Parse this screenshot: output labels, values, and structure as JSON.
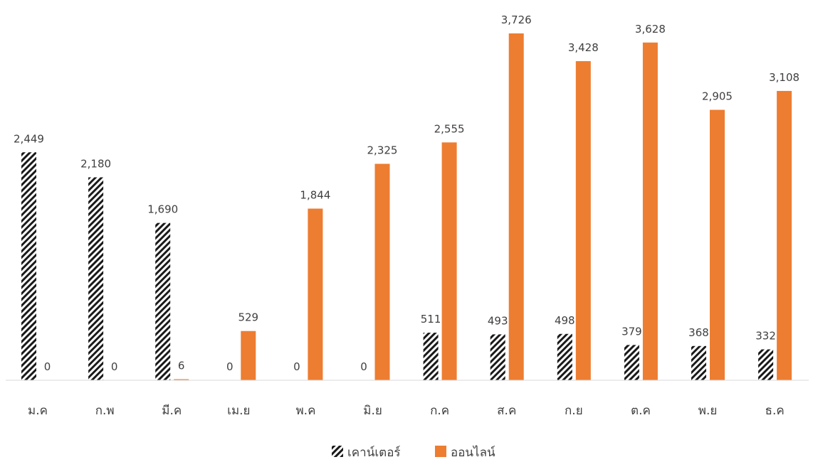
{
  "chart_data": {
    "type": "bar",
    "categories": [
      "ม.ค",
      "ก.พ",
      "มี.ค",
      "เม.ย",
      "พ.ค",
      "มิ.ย",
      "ก.ค",
      "ส.ค",
      "ก.ย",
      "ต.ค",
      "พ.ย",
      "ธ.ค"
    ],
    "series": [
      {
        "name": "เคาน์เตอร์",
        "values": [
          2449,
          2180,
          1690,
          0,
          0,
          0,
          511,
          493,
          498,
          379,
          368,
          332
        ],
        "labels": [
          "2,449",
          "2,180",
          "1,690",
          "0",
          "0",
          "0",
          "511",
          "493",
          "498",
          "379",
          "368",
          "332"
        ],
        "color": "#1a1a1a",
        "pattern": "diagonal-hatch"
      },
      {
        "name": "ออนไลน์",
        "values": [
          0,
          0,
          6,
          529,
          1844,
          2325,
          2555,
          3726,
          3428,
          3628,
          2905,
          3108
        ],
        "labels": [
          "0",
          "0",
          "6",
          "529",
          "1,844",
          "2,325",
          "2,555",
          "3,726",
          "3,428",
          "3,628",
          "2,905",
          "3,108"
        ],
        "color": "#ed7d31"
      }
    ],
    "ylim": [
      0,
      3800
    ],
    "grid": false,
    "legend": "bottom",
    "axis_color": "#d9d9d9",
    "text_color": "#404040"
  }
}
